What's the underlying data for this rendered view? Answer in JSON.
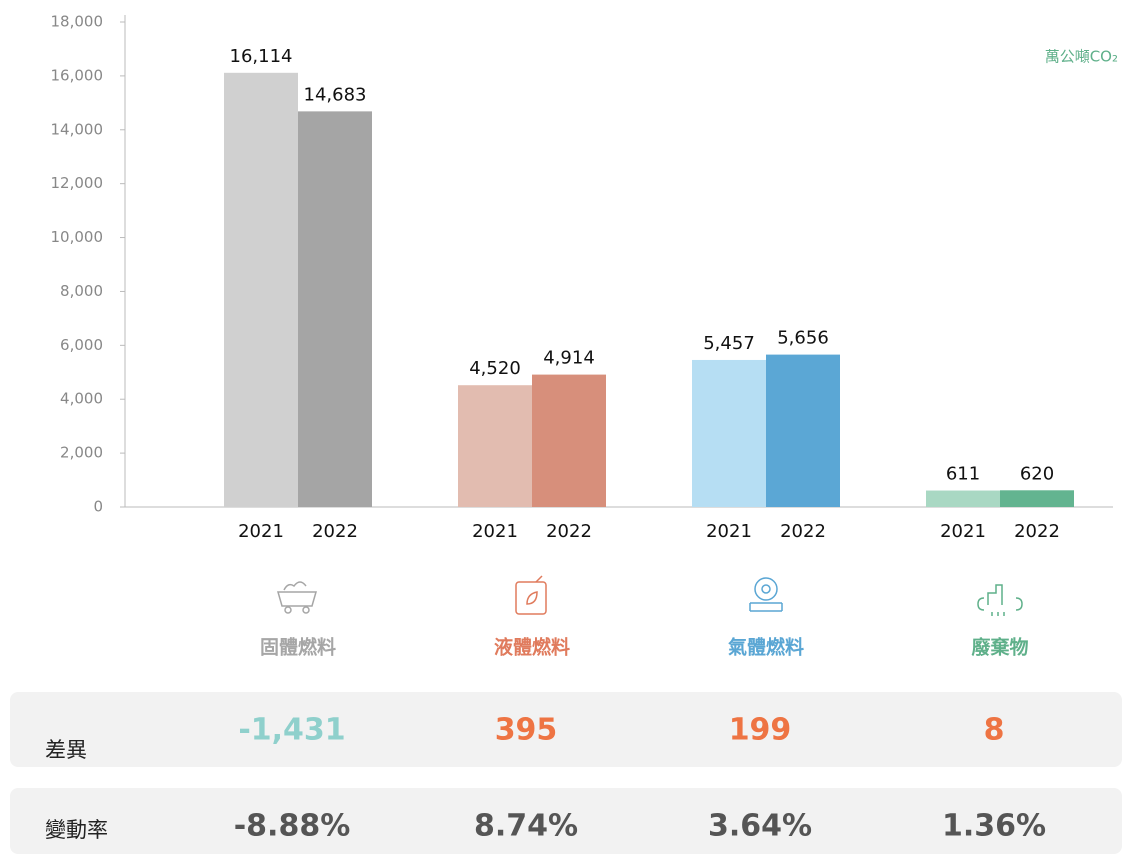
{
  "chart_data": {
    "type": "bar",
    "unit_label": "萬公噸CO₂",
    "categories": [
      "固體燃料",
      "液體燃料",
      "氣體燃料",
      "廢棄物"
    ],
    "category_colors": [
      "#a6a6a6",
      "#e07b5d",
      "#5aa6d4",
      "#5fb08a"
    ],
    "series": [
      {
        "name": "2021",
        "values": [
          16114,
          4520,
          5457,
          611
        ],
        "value_labels": [
          "16,114",
          "4,520",
          "5,457",
          "611"
        ],
        "colors": [
          "#d0d0d0",
          "#e2bcb0",
          "#b6def3",
          "#a9d8c3"
        ]
      },
      {
        "name": "2022",
        "values": [
          14683,
          4914,
          5656,
          620
        ],
        "value_labels": [
          "14,683",
          "4,914",
          "5,656",
          "620"
        ],
        "colors": [
          "#a5a5a5",
          "#d78f7b",
          "#5ba7d5",
          "#63b490"
        ]
      }
    ],
    "ylim": [
      0,
      18000
    ],
    "yticks": [
      0,
      {
        "value": 2000,
        "label": "2,000"
      },
      {
        "value": 4000,
        "label": "4,000"
      },
      {
        "value": 6000,
        "label": "6,000"
      },
      {
        "value": 8000,
        "label": "8,000"
      },
      {
        "value": 10000,
        "label": "10,000"
      },
      {
        "value": 12000,
        "label": "12,000"
      },
      {
        "value": 14000,
        "label": "14,000"
      },
      {
        "value": 16000,
        "label": "16,000"
      },
      {
        "value": 18000,
        "label": "18,000"
      }
    ]
  },
  "table": {
    "rows": [
      {
        "label": "差異",
        "cells": [
          "-1,431",
          "395",
          "199",
          "8"
        ],
        "colors": [
          "#8fd0cc",
          "#ee7443",
          "#ee7443",
          "#ee7443"
        ]
      },
      {
        "label": "變動率",
        "cells": [
          "-8.88%",
          "8.74%",
          "3.64%",
          "1.36%"
        ],
        "colors": [
          "#555555",
          "#555555",
          "#555555",
          "#555555"
        ]
      }
    ]
  }
}
